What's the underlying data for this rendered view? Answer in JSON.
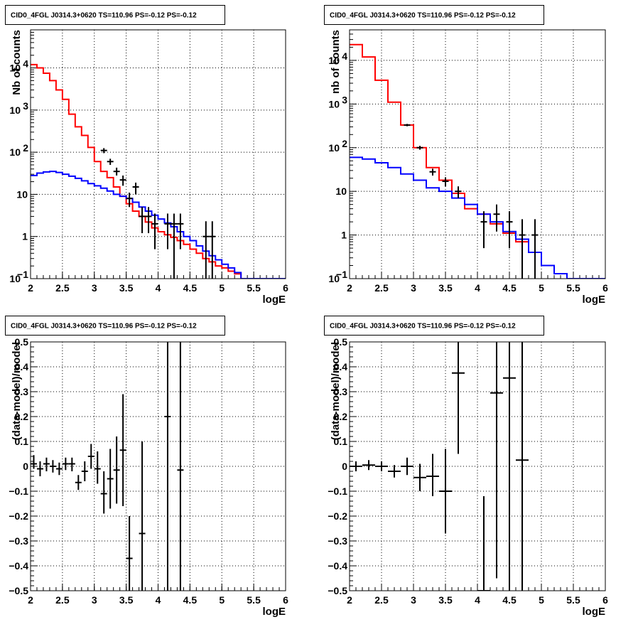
{
  "chart_data": [
    {
      "type": "step-histogram-with-errorbars",
      "title": "CID0_4FGL J0314.3+0620 TS=110.96 PS=-0.12 PS=-0.12",
      "xlabel": "logE",
      "ylabel": "Nb of counts",
      "xlim": [
        2,
        6
      ],
      "ylim": [
        0.1,
        80000
      ],
      "yscale": "log",
      "grid": true,
      "x_ticks": [
        "2",
        "2.5",
        "3",
        "3.5",
        "4",
        "4.5",
        "5",
        "5.5",
        "6"
      ],
      "y_ticks": [
        {
          "value": 0.1,
          "label": "10",
          "sup": "−1"
        },
        {
          "value": 1,
          "label": "1",
          "sup": ""
        },
        {
          "value": 10,
          "label": "10",
          "sup": ""
        },
        {
          "value": 100,
          "label": "10",
          "sup": "2"
        },
        {
          "value": 1000,
          "label": "10",
          "sup": "3"
        },
        {
          "value": 10000,
          "label": "10",
          "sup": "4"
        }
      ],
      "bin_edges": [
        2,
        2.1,
        2.2,
        2.3,
        2.4,
        2.5,
        2.6,
        2.7,
        2.8,
        2.9,
        3,
        3.1,
        3.2,
        3.3,
        3.4,
        3.5,
        3.6,
        3.7,
        3.8,
        3.9,
        4,
        4.1,
        4.2,
        4.3,
        4.4,
        4.5,
        4.6,
        4.7,
        4.8,
        4.9,
        5,
        5.1,
        5.2,
        5.3,
        5.4,
        5.5,
        5.6,
        5.7,
        5.8,
        5.9,
        6
      ],
      "series": [
        {
          "kind": "step",
          "color": "#ff0000",
          "values": [
            12000,
            10000,
            7500,
            5000,
            3000,
            1800,
            800,
            400,
            250,
            130,
            60,
            35,
            25,
            15,
            9,
            6,
            4,
            3,
            2.2,
            1.6,
            1.3,
            1.1,
            0.95,
            0.8,
            0.65,
            0.5,
            0.4,
            0.3,
            0.25,
            0.2,
            0.18,
            0.15,
            0.13,
            0.1,
            0.1,
            0.1,
            0.1,
            0.1,
            0.1,
            0.1
          ]
        },
        {
          "kind": "step",
          "color": "#0000ff",
          "values": [
            28,
            32,
            34,
            35,
            33,
            30,
            27,
            24,
            21,
            18,
            16,
            14,
            12,
            10,
            9,
            8,
            6.5,
            5,
            4,
            3.2,
            2.6,
            2.1,
            1.7,
            1.3,
            1.0,
            0.8,
            0.6,
            0.45,
            0.35,
            0.28,
            0.22,
            0.18,
            0.14,
            0.1,
            0.1,
            0.1,
            0.1,
            0.1,
            0.1,
            0.1
          ]
        },
        {
          "kind": "points",
          "color": "#000000",
          "points": [
            {
              "x": 3.15,
              "y": 110,
              "lo": 95,
              "hi": 125
            },
            {
              "x": 3.25,
              "y": 60,
              "lo": 50,
              "hi": 70
            },
            {
              "x": 3.35,
              "y": 35,
              "lo": 28,
              "hi": 43
            },
            {
              "x": 3.45,
              "y": 22,
              "lo": 16,
              "hi": 28
            },
            {
              "x": 3.55,
              "y": 8,
              "lo": 5,
              "hi": 11
            },
            {
              "x": 3.65,
              "y": 15,
              "lo": 10,
              "hi": 19
            },
            {
              "x": 3.75,
              "y": 3,
              "lo": 1.2,
              "hi": 5
            },
            {
              "x": 3.85,
              "y": 3,
              "lo": 1.2,
              "hi": 5
            },
            {
              "x": 3.95,
              "y": 2,
              "lo": 0.5,
              "hi": 3.5
            },
            {
              "x": 4.15,
              "y": 2,
              "lo": 0.5,
              "hi": 3.5
            },
            {
              "x": 4.25,
              "y": 2,
              "lo": 0.1,
              "hi": 3.5
            },
            {
              "x": 4.35,
              "y": 2,
              "lo": 0.5,
              "hi": 3.5
            },
            {
              "x": 4.75,
              "y": 1,
              "lo": 0.1,
              "hi": 2.3
            },
            {
              "x": 4.85,
              "y": 1,
              "lo": 0.1,
              "hi": 2.3
            }
          ]
        }
      ]
    },
    {
      "type": "step-histogram-with-errorbars",
      "title": "CID0_4FGL J0314.3+0620 TS=110.96 PS=-0.12 PS=-0.12",
      "xlabel": "logE",
      "ylabel": "nb of counts",
      "xlim": [
        2,
        6
      ],
      "ylim": [
        0.1,
        50000
      ],
      "yscale": "log",
      "grid": true,
      "x_ticks": [
        "2",
        "2.5",
        "3",
        "3.5",
        "4",
        "4.5",
        "5",
        "5.5",
        "6"
      ],
      "y_ticks": [
        {
          "value": 0.1,
          "label": "10",
          "sup": "−1"
        },
        {
          "value": 1,
          "label": "1",
          "sup": ""
        },
        {
          "value": 10,
          "label": "10",
          "sup": ""
        },
        {
          "value": 100,
          "label": "10",
          "sup": "2"
        },
        {
          "value": 1000,
          "label": "10",
          "sup": "3"
        },
        {
          "value": 10000,
          "label": "10",
          "sup": "4"
        }
      ],
      "bin_edges": [
        2,
        2.2,
        2.4,
        2.6,
        2.8,
        3,
        3.2,
        3.4,
        3.6,
        3.8,
        4,
        4.2,
        4.4,
        4.6,
        4.8,
        5,
        5.2,
        5.4,
        5.6,
        5.8,
        6
      ],
      "series": [
        {
          "kind": "step",
          "color": "#ff0000",
          "values": [
            23000,
            12000,
            3500,
            1100,
            330,
            100,
            35,
            18,
            9,
            4,
            3,
            1.8,
            1.1,
            0.7,
            0.4,
            0.2,
            0.13,
            0.1,
            0.1,
            0.1
          ]
        },
        {
          "kind": "step",
          "color": "#0000ff",
          "values": [
            60,
            55,
            45,
            35,
            25,
            18,
            12,
            10,
            7,
            5,
            3,
            2,
            1.2,
            0.8,
            0.4,
            0.2,
            0.13,
            0.1,
            0.1,
            0.1
          ]
        },
        {
          "kind": "points",
          "color": "#000000",
          "points": [
            {
              "x": 2.9,
              "y": 330,
              "lo": 310,
              "hi": 350
            },
            {
              "x": 3.1,
              "y": 100,
              "lo": 90,
              "hi": 110
            },
            {
              "x": 3.3,
              "y": 28,
              "lo": 23,
              "hi": 33
            },
            {
              "x": 3.5,
              "y": 17,
              "lo": 13,
              "hi": 21
            },
            {
              "x": 3.7,
              "y": 10,
              "lo": 7,
              "hi": 13
            },
            {
              "x": 4.1,
              "y": 2,
              "lo": 0.5,
              "hi": 3.5
            },
            {
              "x": 4.3,
              "y": 3,
              "lo": 1.2,
              "hi": 5
            },
            {
              "x": 4.5,
              "y": 2,
              "lo": 0.5,
              "hi": 3.5
            },
            {
              "x": 4.7,
              "y": 1,
              "lo": 0.1,
              "hi": 2.3
            },
            {
              "x": 4.9,
              "y": 1,
              "lo": 0.1,
              "hi": 2.3
            }
          ]
        }
      ]
    },
    {
      "type": "errorbar-scatter",
      "title": "CID0_4FGL J0314.3+0620 TS=110.96 PS=-0.12 PS=-0.12",
      "xlabel": "logE",
      "ylabel": "(data-model)/model",
      "xlim": [
        2,
        6
      ],
      "ylim": [
        -0.5,
        0.5
      ],
      "yscale": "linear",
      "grid": true,
      "x_ticks": [
        "2",
        "2.5",
        "3",
        "3.5",
        "4",
        "4.5",
        "5",
        "5.5",
        "6"
      ],
      "y_ticks": [
        "−0.5",
        "−0.4",
        "−0.3",
        "−0.2",
        "−0.1",
        "0",
        "0.1",
        "0.2",
        "0.3",
        "0.4",
        "0.5"
      ],
      "xerr": 0.05,
      "series": [
        {
          "kind": "points",
          "color": "#000000",
          "points": [
            {
              "x": 2.05,
              "y": 0.01,
              "lo": -0.01,
              "hi": 0.045
            },
            {
              "x": 2.15,
              "y": -0.01,
              "lo": -0.04,
              "hi": 0.02
            },
            {
              "x": 2.25,
              "y": 0.01,
              "lo": -0.02,
              "hi": 0.035
            },
            {
              "x": 2.35,
              "y": 0.0,
              "lo": -0.025,
              "hi": 0.025
            },
            {
              "x": 2.45,
              "y": -0.01,
              "lo": -0.035,
              "hi": 0.015
            },
            {
              "x": 2.55,
              "y": 0.01,
              "lo": -0.015,
              "hi": 0.035
            },
            {
              "x": 2.65,
              "y": 0.01,
              "lo": -0.02,
              "hi": 0.035
            },
            {
              "x": 2.75,
              "y": -0.065,
              "lo": -0.095,
              "hi": -0.035
            },
            {
              "x": 2.85,
              "y": -0.02,
              "lo": -0.06,
              "hi": 0.02
            },
            {
              "x": 2.95,
              "y": 0.04,
              "lo": -0.01,
              "hi": 0.09
            },
            {
              "x": 3.05,
              "y": -0.01,
              "lo": -0.07,
              "hi": 0.06
            },
            {
              "x": 3.15,
              "y": -0.11,
              "lo": -0.19,
              "hi": -0.02
            },
            {
              "x": 3.25,
              "y": -0.05,
              "lo": -0.17,
              "hi": 0.07
            },
            {
              "x": 3.35,
              "y": -0.015,
              "lo": -0.15,
              "hi": 0.12
            },
            {
              "x": 3.45,
              "y": 0.065,
              "lo": -0.16,
              "hi": 0.29
            },
            {
              "x": 3.55,
              "y": -0.37,
              "lo": -0.5,
              "hi": -0.2
            },
            {
              "x": 3.75,
              "y": -0.27,
              "lo": -0.5,
              "hi": 0.1
            },
            {
              "x": 4.15,
              "y": 0.2,
              "lo": -0.5,
              "hi": 0.5
            },
            {
              "x": 4.35,
              "y": -0.015,
              "lo": -0.5,
              "hi": 0.5
            }
          ]
        }
      ]
    },
    {
      "type": "errorbar-scatter",
      "title": "CID0_4FGL J0314.3+0620 TS=110.96 PS=-0.12 PS=-0.12",
      "xlabel": "logE",
      "ylabel": "(data-model)/model",
      "xlim": [
        2,
        6
      ],
      "ylim": [
        -0.5,
        0.5
      ],
      "yscale": "linear",
      "grid": true,
      "x_ticks": [
        "2",
        "2.5",
        "3",
        "3.5",
        "4",
        "4.5",
        "5",
        "5.5",
        "6"
      ],
      "y_ticks": [
        "−0.5",
        "−0.4",
        "−0.3",
        "−0.2",
        "−0.1",
        "0",
        "0.1",
        "0.2",
        "0.3",
        "0.4",
        "0.5"
      ],
      "xerr": 0.1,
      "series": [
        {
          "kind": "points",
          "color": "#000000",
          "points": [
            {
              "x": 2.1,
              "y": 0.0,
              "lo": -0.02,
              "hi": 0.02
            },
            {
              "x": 2.3,
              "y": 0.005,
              "lo": -0.015,
              "hi": 0.025
            },
            {
              "x": 2.5,
              "y": 0.0,
              "lo": -0.02,
              "hi": 0.02
            },
            {
              "x": 2.7,
              "y": -0.02,
              "lo": -0.045,
              "hi": 0.005
            },
            {
              "x": 2.9,
              "y": 0.0,
              "lo": -0.035,
              "hi": 0.035
            },
            {
              "x": 3.1,
              "y": -0.045,
              "lo": -0.1,
              "hi": 0.01
            },
            {
              "x": 3.3,
              "y": -0.04,
              "lo": -0.12,
              "hi": 0.05
            },
            {
              "x": 3.5,
              "y": -0.1,
              "lo": -0.27,
              "hi": 0.07
            },
            {
              "x": 3.7,
              "y": 0.375,
              "lo": 0.05,
              "hi": 0.5
            },
            {
              "x": 4.1,
              "y": -0.5,
              "lo": -0.5,
              "hi": -0.12
            },
            {
              "x": 4.3,
              "y": 0.295,
              "lo": -0.45,
              "hi": 0.5
            },
            {
              "x": 4.5,
              "y": 0.355,
              "lo": -0.5,
              "hi": 0.5
            },
            {
              "x": 4.7,
              "y": 0.025,
              "lo": -0.5,
              "hi": 0.5
            }
          ]
        }
      ]
    }
  ]
}
